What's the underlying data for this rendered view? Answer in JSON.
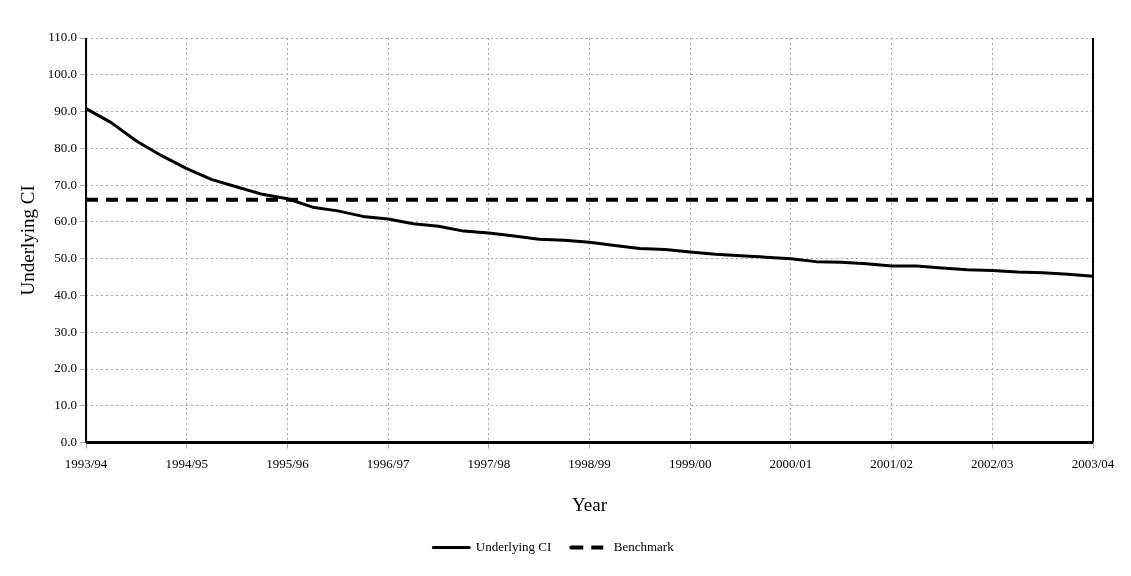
{
  "chart_data": {
    "type": "line",
    "xlabel": "Year",
    "ylabel": "Underlying CI",
    "categories": [
      "1993/94",
      null,
      null,
      null,
      "1994/95",
      null,
      null,
      null,
      "1995/96",
      null,
      null,
      null,
      "1996/97",
      null,
      null,
      null,
      "1997/98",
      null,
      null,
      null,
      "1998/99",
      null,
      null,
      null,
      "1999/00",
      null,
      null,
      null,
      "2000/01",
      null,
      null,
      null,
      "2001/02",
      null,
      null,
      null,
      "2002/03",
      null,
      null,
      null,
      "2003/04"
    ],
    "series": [
      {
        "name": "Underlying CI",
        "color": "#000000",
        "line_style": "solid",
        "values": [
          90.8,
          87,
          82,
          78,
          74.5,
          71.5,
          69.5,
          67.5,
          66.3,
          64,
          63,
          61.5,
          60.8,
          59.5,
          58.8,
          57.5,
          57,
          56.2,
          55.3,
          55,
          54.5,
          53.6,
          52.8,
          52.5,
          51.8,
          51.2,
          50.8,
          50.4,
          50,
          49.2,
          49,
          48.6,
          48,
          48,
          47.5,
          47,
          46.8,
          46.4,
          46.2,
          45.8,
          45.2
        ]
      },
      {
        "name": "Benchmark",
        "color": "#000000",
        "line_style": "dashed",
        "values": [
          66,
          66,
          66,
          66,
          66,
          66,
          66,
          66,
          66,
          66,
          66,
          66,
          66,
          66,
          66,
          66,
          66,
          66,
          66,
          66,
          66,
          66,
          66,
          66,
          66,
          66,
          66,
          66,
          66,
          66,
          66,
          66,
          66,
          66,
          66,
          66,
          66,
          66,
          66,
          66,
          66
        ]
      }
    ],
    "ylim": [
      0,
      110
    ],
    "yticks": [
      {
        "value": 0,
        "label": "0.0"
      },
      {
        "value": 10,
        "label": "10.0"
      },
      {
        "value": 20,
        "label": "20.0"
      },
      {
        "value": 30,
        "label": "30.0"
      },
      {
        "value": 40,
        "label": "40.0"
      },
      {
        "value": 50,
        "label": "50.0"
      },
      {
        "value": 60,
        "label": "60.0"
      },
      {
        "value": 70,
        "label": "70.0"
      },
      {
        "value": 80,
        "label": "80.0"
      },
      {
        "value": 90,
        "label": "90.0"
      },
      {
        "value": 100,
        "label": "100.0"
      },
      {
        "value": 110,
        "label": "110.0"
      }
    ],
    "grid": true,
    "legend": "bottom",
    "marker": "none"
  }
}
